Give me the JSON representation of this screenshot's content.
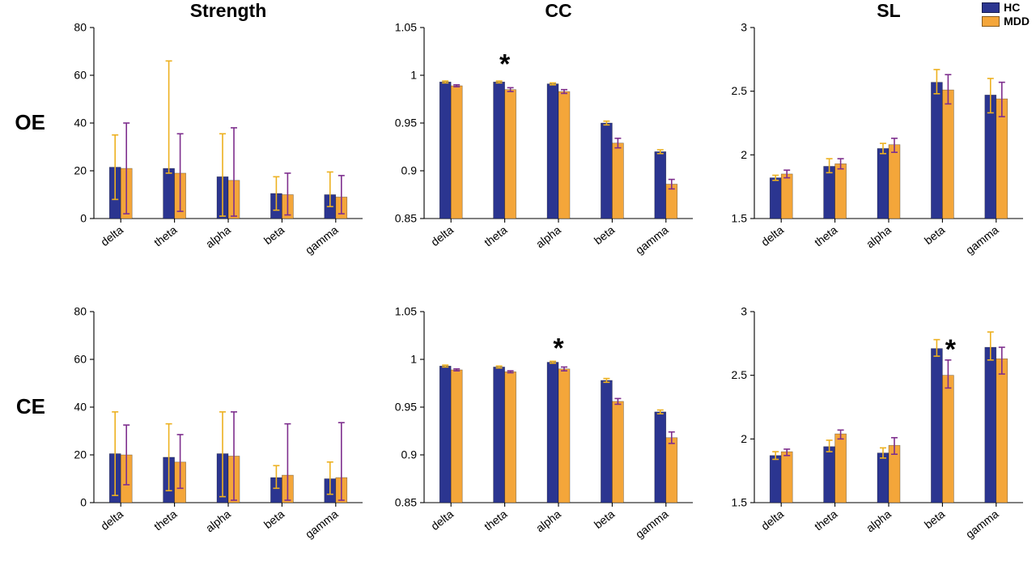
{
  "figure": {
    "row_labels": [
      "OE",
      "CE"
    ],
    "column_titles": [
      "Strength",
      "CC",
      "SL"
    ],
    "legend": {
      "items": [
        {
          "label": "HC",
          "color": "#2b3590"
        },
        {
          "label": "MDD",
          "color": "#f4a63a"
        }
      ]
    },
    "colors": {
      "hc_bar": "#2b3590",
      "mdd_bar": "#f4a63a",
      "hc_err": "#edb120",
      "mdd_err": "#7e2f8e",
      "axis": "#000000"
    }
  },
  "chart_data": [
    {
      "type": "bar",
      "title": "Strength",
      "row": "OE",
      "categories": [
        "delta",
        "theta",
        "alpha",
        "beta",
        "gamma"
      ],
      "ylim": [
        0,
        80
      ],
      "yticks": [
        0,
        20,
        40,
        60,
        80
      ],
      "ytick_labels": [
        "0",
        "20",
        "40",
        "60",
        "80"
      ],
      "series": [
        {
          "name": "HC",
          "values": [
            21.5,
            21,
            17.5,
            10.5,
            10
          ],
          "err": [
            [
              8,
              35
            ],
            [
              19,
              66
            ],
            [
              1,
              35.5
            ],
            [
              3.5,
              17.5
            ],
            [
              5,
              19.5
            ]
          ]
        },
        {
          "name": "MDD",
          "values": [
            21,
            19,
            16,
            10,
            9
          ],
          "err": [
            [
              2,
              40
            ],
            [
              3,
              35.5
            ],
            [
              1,
              38
            ],
            [
              1.5,
              19
            ],
            [
              2,
              18
            ]
          ]
        }
      ],
      "annotations": []
    },
    {
      "type": "bar",
      "title": "CC",
      "row": "OE",
      "categories": [
        "delta",
        "theta",
        "alpha",
        "beta",
        "gamma"
      ],
      "ylim": [
        0.85,
        1.05
      ],
      "yticks": [
        0.85,
        0.9,
        0.95,
        1,
        1.05
      ],
      "ytick_labels": [
        "0.85",
        "0.9",
        "0.95",
        "1",
        "1.05"
      ],
      "series": [
        {
          "name": "HC",
          "values": [
            0.993,
            0.993,
            0.991,
            0.95,
            0.92
          ],
          "err": [
            [
              0.992,
              0.994
            ],
            [
              0.992,
              0.994
            ],
            [
              0.99,
              0.992
            ],
            [
              0.948,
              0.952
            ],
            [
              0.918,
              0.922
            ]
          ]
        },
        {
          "name": "MDD",
          "values": [
            0.989,
            0.985,
            0.983,
            0.929,
            0.886
          ],
          "err": [
            [
              0.988,
              0.99
            ],
            [
              0.983,
              0.987
            ],
            [
              0.981,
              0.985
            ],
            [
              0.924,
              0.934
            ],
            [
              0.881,
              0.891
            ]
          ]
        }
      ],
      "annotations": [
        {
          "text": "*",
          "category": "theta",
          "y": 1.002,
          "dx": 0
        }
      ]
    },
    {
      "type": "bar",
      "title": "SL",
      "row": "OE",
      "categories": [
        "delta",
        "theta",
        "alpha",
        "beta",
        "gamma"
      ],
      "ylim": [
        1.5,
        3
      ],
      "yticks": [
        1.5,
        2,
        2.5,
        3
      ],
      "ytick_labels": [
        "1.5",
        "2",
        "2.5",
        "3"
      ],
      "series": [
        {
          "name": "HC",
          "values": [
            1.82,
            1.91,
            2.05,
            2.57,
            2.47
          ],
          "err": [
            [
              1.8,
              1.84
            ],
            [
              1.86,
              1.97
            ],
            [
              2.01,
              2.09
            ],
            [
              2.48,
              2.67
            ],
            [
              2.33,
              2.6
            ]
          ]
        },
        {
          "name": "MDD",
          "values": [
            1.85,
            1.93,
            2.08,
            2.51,
            2.44
          ],
          "err": [
            [
              1.82,
              1.88
            ],
            [
              1.89,
              1.97
            ],
            [
              2.02,
              2.13
            ],
            [
              2.4,
              2.63
            ],
            [
              2.3,
              2.57
            ]
          ]
        }
      ],
      "annotations": []
    },
    {
      "type": "bar",
      "title": "",
      "row": "CE",
      "categories": [
        "delta",
        "theta",
        "alpha",
        "beta",
        "gamma"
      ],
      "ylim": [
        0,
        80
      ],
      "yticks": [
        0,
        20,
        40,
        60,
        80
      ],
      "ytick_labels": [
        "0",
        "20",
        "40",
        "60",
        "80"
      ],
      "series": [
        {
          "name": "HC",
          "values": [
            20.5,
            19,
            20.5,
            10.5,
            10
          ],
          "err": [
            [
              3,
              38
            ],
            [
              5,
              33
            ],
            [
              2.5,
              38
            ],
            [
              6,
              15.5
            ],
            [
              3.5,
              17
            ]
          ]
        },
        {
          "name": "MDD",
          "values": [
            20,
            17,
            19.5,
            11.5,
            10.5
          ],
          "err": [
            [
              7.5,
              32.5
            ],
            [
              6,
              28.5
            ],
            [
              1,
              38
            ],
            [
              1,
              33
            ],
            [
              1,
              33.5
            ]
          ]
        }
      ],
      "annotations": []
    },
    {
      "type": "bar",
      "title": "",
      "row": "CE",
      "categories": [
        "delta",
        "theta",
        "alpha",
        "beta",
        "gamma"
      ],
      "ylim": [
        0.85,
        1.05
      ],
      "yticks": [
        0.85,
        0.9,
        0.95,
        1,
        1.05
      ],
      "ytick_labels": [
        "0.85",
        "0.9",
        "0.95",
        "1",
        "1.05"
      ],
      "series": [
        {
          "name": "HC",
          "values": [
            0.993,
            0.992,
            0.997,
            0.978,
            0.945
          ],
          "err": [
            [
              0.992,
              0.994
            ],
            [
              0.991,
              0.993
            ],
            [
              0.996,
              0.998
            ],
            [
              0.976,
              0.98
            ],
            [
              0.943,
              0.947
            ]
          ]
        },
        {
          "name": "MDD",
          "values": [
            0.989,
            0.987,
            0.99,
            0.956,
            0.918
          ],
          "err": [
            [
              0.988,
              0.99
            ],
            [
              0.986,
              0.988
            ],
            [
              0.988,
              0.992
            ],
            [
              0.953,
              0.959
            ],
            [
              0.912,
              0.924
            ]
          ]
        }
      ],
      "annotations": [
        {
          "text": "*",
          "category": "alpha",
          "y": 1.002,
          "dx": 0
        }
      ]
    },
    {
      "type": "bar",
      "title": "",
      "row": "CE",
      "categories": [
        "delta",
        "theta",
        "alpha",
        "beta",
        "gamma"
      ],
      "ylim": [
        1.5,
        3
      ],
      "yticks": [
        1.5,
        2,
        2.5,
        3
      ],
      "ytick_labels": [
        "1.5",
        "2",
        "2.5",
        "3"
      ],
      "series": [
        {
          "name": "HC",
          "values": [
            1.87,
            1.94,
            1.89,
            2.71,
            2.72
          ],
          "err": [
            [
              1.84,
              1.9
            ],
            [
              1.9,
              1.99
            ],
            [
              1.85,
              1.93
            ],
            [
              2.65,
              2.78
            ],
            [
              2.62,
              2.84
            ]
          ]
        },
        {
          "name": "MDD",
          "values": [
            1.9,
            2.04,
            1.95,
            2.5,
            2.63
          ],
          "err": [
            [
              1.87,
              1.92
            ],
            [
              2.0,
              2.07
            ],
            [
              1.88,
              2.01
            ],
            [
              2.4,
              2.62
            ],
            [
              2.51,
              2.72
            ]
          ]
        }
      ],
      "annotations": [
        {
          "text": "*",
          "category": "beta",
          "y": 2.63,
          "dx": 10
        }
      ]
    }
  ]
}
